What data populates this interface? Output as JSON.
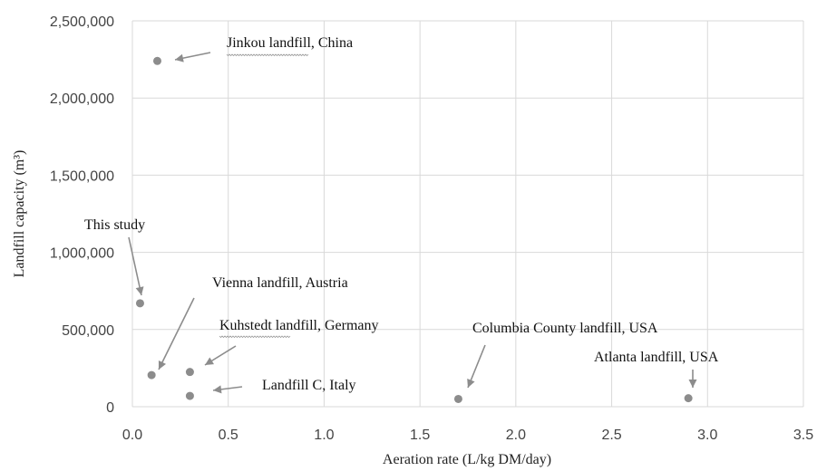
{
  "chart_data": {
    "type": "scatter",
    "title": "",
    "xlabel": "Aeration rate (L/kg DM/day)",
    "ylabel": "Landfill capacity (m³)",
    "xlim": [
      0,
      3.5
    ],
    "ylim": [
      0,
      2500000
    ],
    "x_ticks": [
      "0.0",
      "0.5",
      "1.0",
      "1.5",
      "2.0",
      "2.5",
      "3.0",
      "3.5"
    ],
    "y_ticks": [
      "0",
      "500,000",
      "1,000,000",
      "1,500,000",
      "2,000,000",
      "2,500,000"
    ],
    "grid": true,
    "legend": "none",
    "point_color": "#8c8c8c",
    "points": [
      {
        "label": "Jinkou landfill, China",
        "x": 0.13,
        "y": 2240000
      },
      {
        "label": "This study",
        "x": 0.04,
        "y": 670000
      },
      {
        "label": "Vienna landfill, Austria",
        "x": 0.1,
        "y": 205000
      },
      {
        "label": "Kuhstedt landfill, Germany",
        "x": 0.3,
        "y": 225000
      },
      {
        "label": "Landfill C, Italy",
        "x": 0.3,
        "y": 70000
      },
      {
        "label": "Columbia County landfill, USA",
        "x": 1.7,
        "y": 50000
      },
      {
        "label": "Atlanta landfill, USA",
        "x": 2.9,
        "y": 55000
      }
    ]
  }
}
